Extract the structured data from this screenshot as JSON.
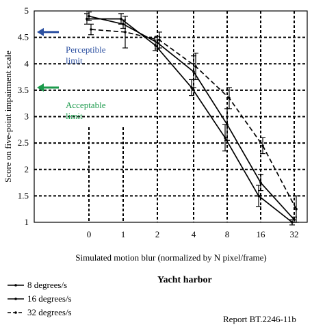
{
  "chart_data": {
    "type": "line",
    "categories": [
      "0",
      "1",
      "2",
      "4",
      "8",
      "16",
      "32"
    ],
    "ylim": [
      1,
      5
    ],
    "yticks": [
      1,
      1.5,
      2,
      2.5,
      3,
      3.5,
      4,
      4.5,
      5
    ],
    "ylabel": "Score on five-point impairment scale",
    "xlabel": "Simulated motion blur (normalized by N pixel/frame)",
    "subtitle": "Yacht harbor",
    "source": "Report BT.2246-11b",
    "grid": true,
    "legend_position": "bottom-left",
    "series": [
      {
        "name": "8 degrees/s",
        "style": "solid",
        "values": [
          4.85,
          4.85,
          4.35,
          3.55,
          2.6,
          1.5,
          1.0
        ],
        "err": [
          0.1,
          0.1,
          0.1,
          0.15,
          0.25,
          0.2,
          0.05
        ]
      },
      {
        "name": "16 degrees/s",
        "style": "solid",
        "values": [
          4.9,
          4.75,
          4.4,
          3.85,
          2.85,
          1.75,
          1.05
        ],
        "err": [
          0.08,
          0.08,
          0.12,
          0.3,
          0.3,
          0.15,
          0.05
        ]
      },
      {
        "name": "32 degrees/s",
        "style": "dashed",
        "values": [
          4.65,
          4.6,
          4.45,
          3.95,
          3.35,
          2.45,
          1.25
        ],
        "err": [
          0.1,
          0.3,
          0.15,
          0.25,
          0.2,
          0.15,
          0.25
        ]
      }
    ],
    "annotations": [
      {
        "text": [
          "Perceptible",
          "limit"
        ],
        "y": 4.6,
        "color": "#2b4fa0"
      },
      {
        "text": [
          "Acceptable",
          "limit"
        ],
        "y": 3.55,
        "color": "#1b9a4b"
      }
    ]
  }
}
